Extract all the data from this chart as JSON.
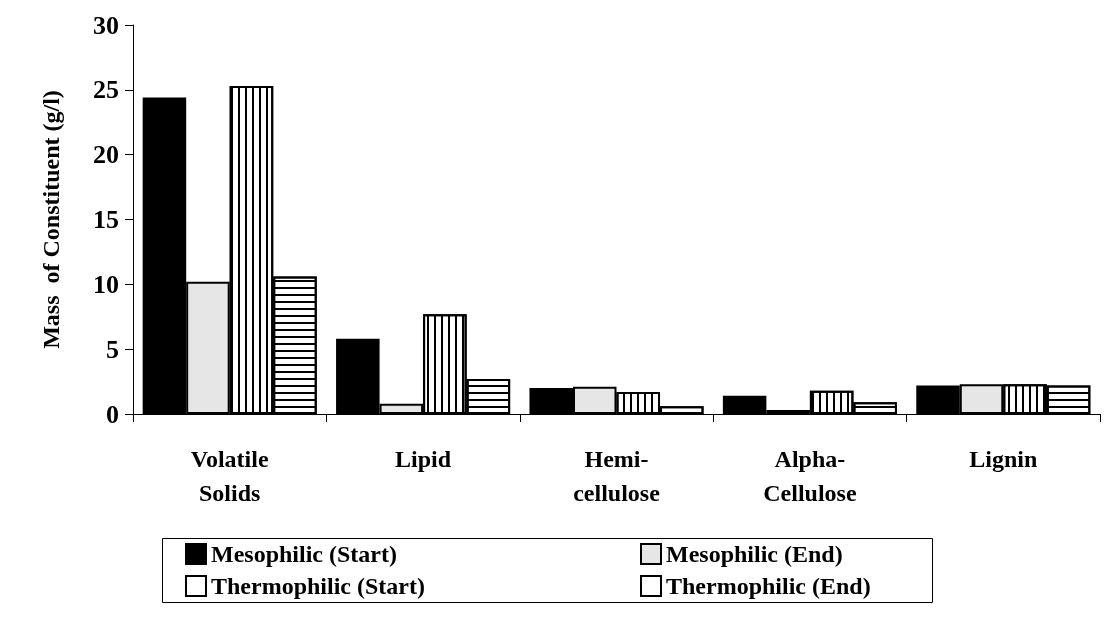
{
  "chart_data": {
    "type": "bar",
    "ylabel": "Mass  of Constituent (g/l)",
    "categories": [
      "Volatile\nSolids",
      "Lipid",
      "Hemi-\ncellulose",
      "Alpha-\nCellulose",
      "Lignin"
    ],
    "series": [
      {
        "name": "Mesophilic (Start)",
        "color": "#000000",
        "values": [
          24.4,
          5.8,
          2.0,
          1.4,
          2.2
        ]
      },
      {
        "name": "Mesophilic (End)",
        "color": "#e6e6e6",
        "values": [
          10.2,
          0.8,
          2.1,
          0.3,
          2.3
        ]
      },
      {
        "name": "Thermophilic (Start)",
        "color": "#ffffff",
        "values": [
          25.3,
          7.7,
          1.7,
          1.8,
          2.3
        ]
      },
      {
        "name": "Thermophilic (End)",
        "color": "#ffffff",
        "values": [
          10.6,
          2.7,
          0.6,
          0.9,
          2.2
        ]
      }
    ],
    "ylim": [
      0,
      30
    ],
    "yticks": [
      0,
      5,
      10,
      15,
      20,
      25,
      30
    ],
    "grid": false,
    "legend": "bottom"
  }
}
